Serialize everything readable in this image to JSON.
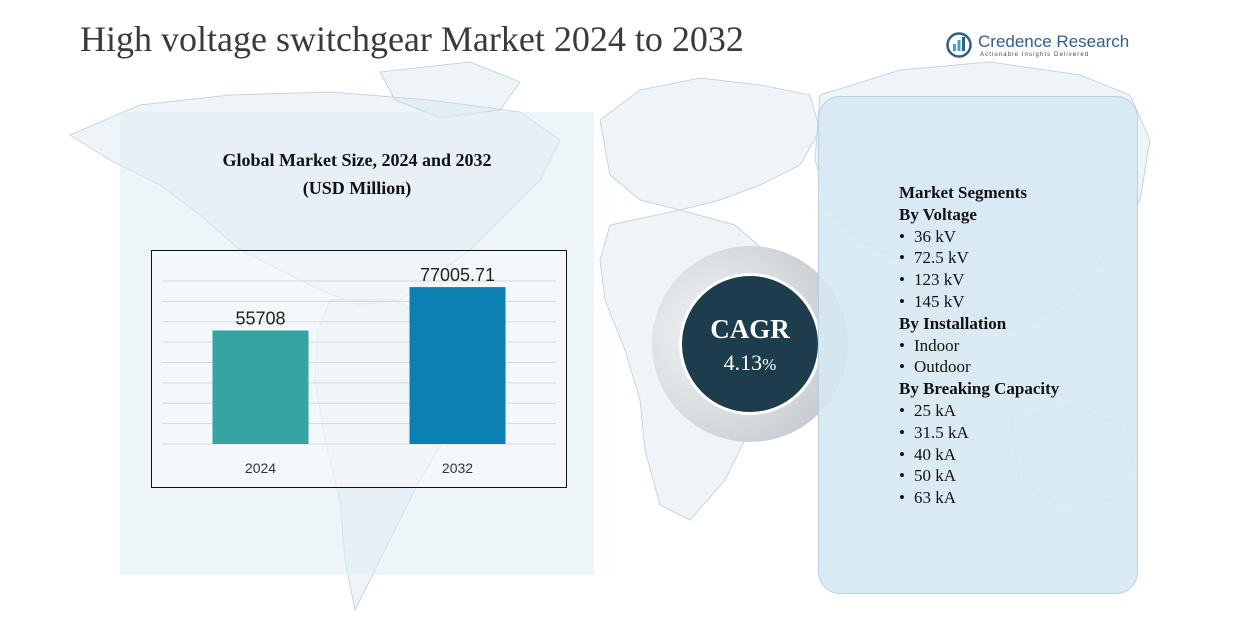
{
  "title": "High voltage switchgear Market 2024 to 2032",
  "brand": {
    "name": "Credence Research",
    "tagline": "Actionable Insights Delivered",
    "color": "#2f5f8a"
  },
  "chart_panel": {
    "title_line1": "Global Market Size, 2024 and 2032",
    "title_line2": "(USD Million)"
  },
  "chart_data": {
    "type": "bar",
    "categories": [
      "2024",
      "2032"
    ],
    "values": [
      55708,
      77005.71
    ],
    "value_labels": [
      "55708",
      "77005.71"
    ],
    "colors": [
      "#35a5a2",
      "#0a80b3"
    ],
    "ylim": [
      0,
      80000
    ],
    "grid": true,
    "xlabel": "",
    "ylabel": ""
  },
  "cagr": {
    "label": "CAGR",
    "value": "4.13",
    "unit": "%"
  },
  "segments": {
    "heading": "Market Segments",
    "groups": [
      {
        "title": "By Voltage",
        "items": [
          "36 kV",
          "72.5 kV",
          "123 kV",
          "145 kV"
        ]
      },
      {
        "title": "By Installation",
        "items": [
          "Indoor",
          "Outdoor"
        ]
      },
      {
        "title": "By Breaking Capacity",
        "items": [
          "25 kA",
          "31.5 kA",
          "40 kA",
          "50 kA",
          "63 kA"
        ]
      }
    ]
  }
}
